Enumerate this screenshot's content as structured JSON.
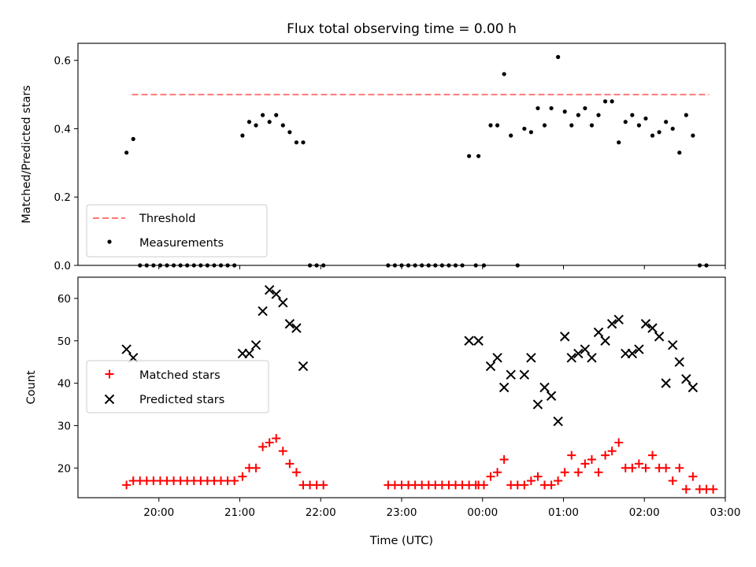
{
  "chart_data": [
    {
      "type": "scatter",
      "title": "Flux total observing time = 0.00 h",
      "xlabel": "",
      "ylabel": "Matched/Predicted stars",
      "xlim_minutes_since_1940": [
        -40,
        440
      ],
      "ylim": [
        0,
        0.65
      ],
      "yticks": [
        0.0,
        0.2,
        0.4,
        0.6
      ],
      "ytick_labels": [
        "0.0",
        "0.2",
        "0.4",
        "0.6"
      ],
      "legend_position": "lower-left",
      "grid": false,
      "threshold": {
        "name": "Threshold",
        "value": 0.5,
        "x_range": [
          "19:40",
          "02:48"
        ],
        "color": "#ff7777"
      },
      "series": [
        {
          "name": "Measurements",
          "color": "#000000",
          "points": [
            [
              "19:36",
              0.33
            ],
            [
              "19:41",
              0.37
            ],
            [
              "19:46",
              0.0
            ],
            [
              "19:51",
              0.0
            ],
            [
              "19:56",
              0.0
            ],
            [
              "20:01",
              0.0
            ],
            [
              "20:06",
              0.0
            ],
            [
              "20:11",
              0.0
            ],
            [
              "20:16",
              0.0
            ],
            [
              "20:21",
              0.0
            ],
            [
              "20:26",
              0.0
            ],
            [
              "20:31",
              0.0
            ],
            [
              "20:36",
              0.0
            ],
            [
              "20:41",
              0.0
            ],
            [
              "20:46",
              0.0
            ],
            [
              "20:51",
              0.0
            ],
            [
              "20:56",
              0.0
            ],
            [
              "21:02",
              0.38
            ],
            [
              "21:07",
              0.42
            ],
            [
              "21:12",
              0.41
            ],
            [
              "21:17",
              0.44
            ],
            [
              "21:22",
              0.42
            ],
            [
              "21:27",
              0.44
            ],
            [
              "21:32",
              0.41
            ],
            [
              "21:37",
              0.39
            ],
            [
              "21:42",
              0.36
            ],
            [
              "21:47",
              0.36
            ],
            [
              "21:52",
              0.0
            ],
            [
              "21:57",
              0.0
            ],
            [
              "22:02",
              0.0
            ],
            [
              "22:50",
              0.0
            ],
            [
              "22:55",
              0.0
            ],
            [
              "23:00",
              0.0
            ],
            [
              "23:05",
              0.0
            ],
            [
              "23:10",
              0.0
            ],
            [
              "23:15",
              0.0
            ],
            [
              "23:20",
              0.0
            ],
            [
              "23:25",
              0.0
            ],
            [
              "23:30",
              0.0
            ],
            [
              "23:35",
              0.0
            ],
            [
              "23:40",
              0.0
            ],
            [
              "23:45",
              0.0
            ],
            [
              "23:50",
              0.32
            ],
            [
              "23:55",
              0.0
            ],
            [
              "23:57",
              0.32
            ],
            [
              "00:01",
              0.0
            ],
            [
              "00:06",
              0.41
            ],
            [
              "00:11",
              0.41
            ],
            [
              "00:16",
              0.56
            ],
            [
              "00:21",
              0.38
            ],
            [
              "00:26",
              0.0
            ],
            [
              "00:31",
              0.4
            ],
            [
              "00:36",
              0.39
            ],
            [
              "00:41",
              0.46
            ],
            [
              "00:46",
              0.41
            ],
            [
              "00:51",
              0.46
            ],
            [
              "00:56",
              0.61
            ],
            [
              "01:01",
              0.45
            ],
            [
              "01:06",
              0.41
            ],
            [
              "01:11",
              0.44
            ],
            [
              "01:16",
              0.46
            ],
            [
              "01:21",
              0.41
            ],
            [
              "01:26",
              0.44
            ],
            [
              "01:31",
              0.48
            ],
            [
              "01:36",
              0.48
            ],
            [
              "01:41",
              0.36
            ],
            [
              "01:46",
              0.42
            ],
            [
              "01:51",
              0.44
            ],
            [
              "01:56",
              0.41
            ],
            [
              "02:01",
              0.43
            ],
            [
              "02:06",
              0.38
            ],
            [
              "02:11",
              0.39
            ],
            [
              "02:16",
              0.42
            ],
            [
              "02:21",
              0.4
            ],
            [
              "02:26",
              0.33
            ],
            [
              "02:31",
              0.44
            ],
            [
              "02:36",
              0.38
            ],
            [
              "02:41",
              0.0
            ],
            [
              "02:46",
              0.0
            ]
          ]
        }
      ]
    },
    {
      "type": "scatter",
      "title": "",
      "xlabel": "Time (UTC)",
      "ylabel": "Count",
      "xlim_minutes_since_1940": [
        -40,
        440
      ],
      "ylim": [
        13,
        65
      ],
      "yticks": [
        20,
        30,
        40,
        50,
        60
      ],
      "ytick_labels": [
        "20",
        "30",
        "40",
        "50",
        "60"
      ],
      "xtick_labels": [
        "20:00",
        "21:00",
        "22:00",
        "23:00",
        "00:00",
        "01:00",
        "02:00",
        "03:00"
      ],
      "legend_position": "center-left",
      "grid": false,
      "series": [
        {
          "name": "Matched stars",
          "marker": "plus",
          "color": "#ff0000",
          "points": [
            [
              "19:36",
              16
            ],
            [
              "19:41",
              17
            ],
            [
              "19:46",
              17
            ],
            [
              "19:51",
              17
            ],
            [
              "19:56",
              17
            ],
            [
              "20:01",
              17
            ],
            [
              "20:06",
              17
            ],
            [
              "20:11",
              17
            ],
            [
              "20:16",
              17
            ],
            [
              "20:21",
              17
            ],
            [
              "20:26",
              17
            ],
            [
              "20:31",
              17
            ],
            [
              "20:36",
              17
            ],
            [
              "20:41",
              17
            ],
            [
              "20:46",
              17
            ],
            [
              "20:51",
              17
            ],
            [
              "20:56",
              17
            ],
            [
              "21:02",
              18
            ],
            [
              "21:07",
              20
            ],
            [
              "21:12",
              20
            ],
            [
              "21:17",
              25
            ],
            [
              "21:22",
              26
            ],
            [
              "21:27",
              27
            ],
            [
              "21:32",
              24
            ],
            [
              "21:37",
              21
            ],
            [
              "21:42",
              19
            ],
            [
              "21:47",
              16
            ],
            [
              "21:52",
              16
            ],
            [
              "21:57",
              16
            ],
            [
              "22:02",
              16
            ],
            [
              "22:50",
              16
            ],
            [
              "22:55",
              16
            ],
            [
              "23:00",
              16
            ],
            [
              "23:05",
              16
            ],
            [
              "23:10",
              16
            ],
            [
              "23:15",
              16
            ],
            [
              "23:20",
              16
            ],
            [
              "23:25",
              16
            ],
            [
              "23:30",
              16
            ],
            [
              "23:35",
              16
            ],
            [
              "23:40",
              16
            ],
            [
              "23:45",
              16
            ],
            [
              "23:50",
              16
            ],
            [
              "23:55",
              16
            ],
            [
              "23:57",
              16
            ],
            [
              "00:01",
              16
            ],
            [
              "00:06",
              18
            ],
            [
              "00:11",
              19
            ],
            [
              "00:16",
              22
            ],
            [
              "00:21",
              16
            ],
            [
              "00:26",
              16
            ],
            [
              "00:31",
              16
            ],
            [
              "00:36",
              17
            ],
            [
              "00:41",
              18
            ],
            [
              "00:46",
              16
            ],
            [
              "00:51",
              16
            ],
            [
              "00:56",
              17
            ],
            [
              "01:01",
              19
            ],
            [
              "01:06",
              23
            ],
            [
              "01:11",
              19
            ],
            [
              "01:16",
              21
            ],
            [
              "01:21",
              22
            ],
            [
              "01:26",
              19
            ],
            [
              "01:31",
              23
            ],
            [
              "01:36",
              24
            ],
            [
              "01:41",
              26
            ],
            [
              "01:46",
              20
            ],
            [
              "01:51",
              20
            ],
            [
              "01:56",
              21
            ],
            [
              "02:01",
              20
            ],
            [
              "02:06",
              23
            ],
            [
              "02:11",
              20
            ],
            [
              "02:16",
              20
            ],
            [
              "02:21",
              17
            ],
            [
              "02:26",
              20
            ],
            [
              "02:31",
              15
            ],
            [
              "02:36",
              18
            ],
            [
              "02:41",
              15
            ],
            [
              "02:46",
              15
            ],
            [
              "02:51",
              15
            ]
          ]
        },
        {
          "name": "Predicted stars",
          "marker": "x",
          "color": "#000000",
          "points": [
            [
              "19:36",
              48
            ],
            [
              "19:41",
              46
            ],
            [
              "21:02",
              47
            ],
            [
              "21:07",
              47
            ],
            [
              "21:12",
              49
            ],
            [
              "21:17",
              57
            ],
            [
              "21:22",
              62
            ],
            [
              "21:27",
              61
            ],
            [
              "21:32",
              59
            ],
            [
              "21:37",
              54
            ],
            [
              "21:42",
              53
            ],
            [
              "21:47",
              44
            ],
            [
              "23:50",
              50
            ],
            [
              "23:57",
              50
            ],
            [
              "00:06",
              44
            ],
            [
              "00:11",
              46
            ],
            [
              "00:16",
              39
            ],
            [
              "00:21",
              42
            ],
            [
              "00:31",
              42
            ],
            [
              "00:36",
              46
            ],
            [
              "00:41",
              35
            ],
            [
              "00:46",
              39
            ],
            [
              "00:51",
              37
            ],
            [
              "00:56",
              31
            ],
            [
              "01:01",
              51
            ],
            [
              "01:06",
              46
            ],
            [
              "01:11",
              47
            ],
            [
              "01:16",
              48
            ],
            [
              "01:21",
              46
            ],
            [
              "01:26",
              52
            ],
            [
              "01:31",
              50
            ],
            [
              "01:36",
              54
            ],
            [
              "01:41",
              55
            ],
            [
              "01:46",
              47
            ],
            [
              "01:51",
              47
            ],
            [
              "01:56",
              48
            ],
            [
              "02:01",
              54
            ],
            [
              "02:06",
              53
            ],
            [
              "02:11",
              51
            ],
            [
              "02:16",
              40
            ],
            [
              "02:21",
              49
            ],
            [
              "02:26",
              45
            ],
            [
              "02:31",
              41
            ],
            [
              "02:36",
              39
            ]
          ]
        }
      ]
    }
  ]
}
